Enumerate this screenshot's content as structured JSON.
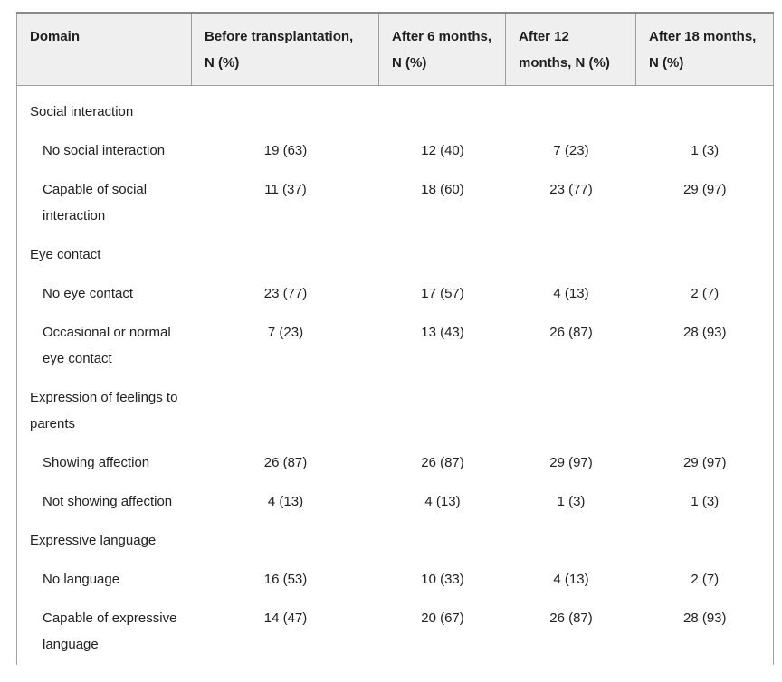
{
  "colors": {
    "page_bg": "#ffffff",
    "header_bg": "#efefef",
    "border": "#9e9e9e",
    "text": "#212121"
  },
  "table": {
    "columns": [
      {
        "label": "Domain"
      },
      {
        "label": "Before transplantation, N (%)"
      },
      {
        "label": "After 6 months, N (%)"
      },
      {
        "label": "After 12 months, N (%)"
      },
      {
        "label": "After 18 months, N (%)"
      }
    ],
    "rows": [
      {
        "type": "group",
        "label": "Social interaction",
        "values": [
          "",
          "",
          "",
          ""
        ]
      },
      {
        "type": "item",
        "label": "No social interaction",
        "values": [
          "19 (63)",
          "12 (40)",
          "7 (23)",
          "1 (3)"
        ]
      },
      {
        "type": "item",
        "label": "Capable of social interaction",
        "values": [
          "11 (37)",
          "18 (60)",
          "23 (77)",
          "29 (97)"
        ]
      },
      {
        "type": "group",
        "label": "Eye contact",
        "values": [
          "",
          "",
          "",
          ""
        ]
      },
      {
        "type": "item",
        "label": "No eye contact",
        "values": [
          "23 (77)",
          "17 (57)",
          "4 (13)",
          "2 (7)"
        ]
      },
      {
        "type": "item",
        "label": "Occasional or normal eye contact",
        "values": [
          "7 (23)",
          "13 (43)",
          "26 (87)",
          "28 (93)"
        ]
      },
      {
        "type": "group",
        "label": "Expression of feelings to parents",
        "values": [
          "",
          "",
          "",
          ""
        ]
      },
      {
        "type": "item",
        "label": "Showing affection",
        "values": [
          "26 (87)",
          "26 (87)",
          "29 (97)",
          "29 (97)"
        ]
      },
      {
        "type": "item",
        "label": "Not showing affection",
        "values": [
          "4 (13)",
          "4 (13)",
          "1 (3)",
          "1 (3)"
        ]
      },
      {
        "type": "group",
        "label": "Expressive language",
        "values": [
          "",
          "",
          "",
          ""
        ]
      },
      {
        "type": "item",
        "label": "No language",
        "values": [
          "16 (53)",
          "10 (33)",
          "4 (13)",
          "2 (7)"
        ]
      },
      {
        "type": "item",
        "label": "Capable of expressive language",
        "values": [
          "14 (47)",
          "20 (67)",
          "26 (87)",
          "28 (93)"
        ]
      }
    ]
  }
}
